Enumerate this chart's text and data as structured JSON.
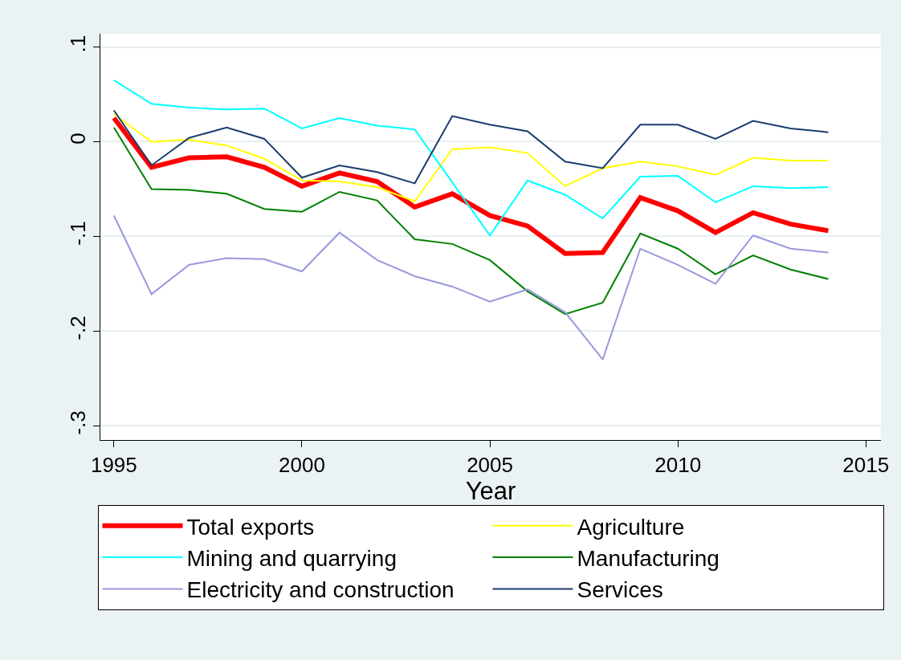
{
  "chart_data": {
    "type": "line",
    "xlabel": "Year",
    "x": [
      1995,
      1996,
      1997,
      1998,
      1999,
      2000,
      2001,
      2002,
      2003,
      2004,
      2005,
      2006,
      2007,
      2008,
      2009,
      2010,
      2011,
      2012,
      2013,
      2014
    ],
    "xlim": [
      1994.64,
      2015.4
    ],
    "xticks": [
      1995,
      2000,
      2005,
      2010,
      2015
    ],
    "ylim": [
      -0.315,
      0.114
    ],
    "yticks": [
      {
        "value": -0.3,
        "label": "-.3"
      },
      {
        "value": -0.2,
        "label": "-.2"
      },
      {
        "value": -0.1,
        "label": "-.1"
      },
      {
        "value": 0,
        "label": "0"
      },
      {
        "value": 0.1,
        "label": ".1"
      }
    ],
    "grid": "y",
    "legend": "bottom",
    "marker": "none",
    "line_style": "solid",
    "series": [
      {
        "name": "Total exports",
        "color": "#ff0000",
        "values": [
          0.025,
          -0.027,
          -0.017,
          -0.016,
          -0.027,
          -0.047,
          -0.033,
          -0.042,
          -0.069,
          -0.055,
          -0.078,
          -0.089,
          -0.118,
          -0.117,
          -0.059,
          -0.073,
          -0.096,
          -0.075,
          -0.087,
          -0.094
        ]
      },
      {
        "name": "Agriculture",
        "color": "#ffff00",
        "values": [
          0.029,
          0.0,
          0.002,
          -0.004,
          -0.018,
          -0.041,
          -0.042,
          -0.048,
          -0.063,
          -0.008,
          -0.006,
          -0.012,
          -0.047,
          -0.028,
          -0.021,
          -0.026,
          -0.035,
          -0.017,
          -0.02,
          -0.02
        ]
      },
      {
        "name": "Mining and quarrying",
        "color": "#00ffff",
        "values": [
          0.065,
          0.04,
          0.036,
          0.034,
          0.035,
          0.014,
          0.025,
          0.017,
          0.013,
          -0.043,
          -0.099,
          -0.041,
          -0.056,
          -0.081,
          -0.037,
          -0.036,
          -0.064,
          -0.047,
          -0.049,
          -0.048
        ]
      },
      {
        "name": "Manufacturing",
        "color": "#008000",
        "values": [
          0.015,
          -0.05,
          -0.051,
          -0.055,
          -0.071,
          -0.074,
          -0.053,
          -0.062,
          -0.103,
          -0.108,
          -0.125,
          -0.158,
          -0.182,
          -0.17,
          -0.097,
          -0.113,
          -0.14,
          -0.12,
          -0.135,
          -0.145
        ]
      },
      {
        "name": "Electricity and construction",
        "color": "#9999dd",
        "values": [
          -0.078,
          -0.161,
          -0.13,
          -0.123,
          -0.124,
          -0.137,
          -0.096,
          -0.125,
          -0.142,
          -0.153,
          -0.169,
          -0.156,
          -0.18,
          -0.23,
          -0.113,
          -0.13,
          -0.15,
          -0.099,
          -0.113,
          -0.117
        ]
      },
      {
        "name": "Services",
        "color": "#1a3c6e",
        "values": [
          0.033,
          -0.025,
          0.004,
          0.015,
          0.003,
          -0.038,
          -0.025,
          -0.032,
          -0.044,
          0.027,
          0.018,
          0.011,
          -0.021,
          -0.028,
          0.018,
          0.018,
          0.003,
          0.022,
          0.014,
          0.01
        ]
      }
    ]
  }
}
